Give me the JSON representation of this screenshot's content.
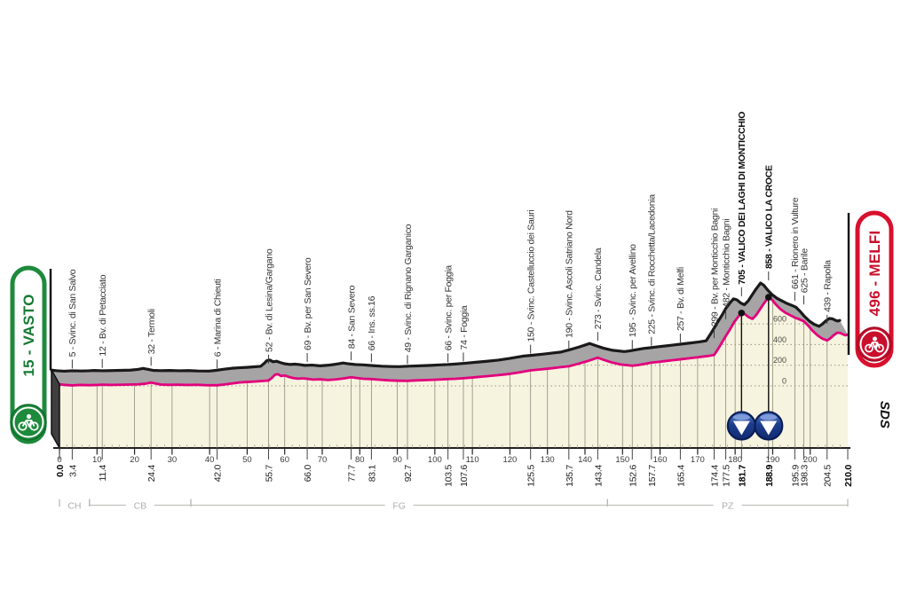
{
  "start_badge": {
    "label": "15 - VASTO",
    "color": "#1e8a3c"
  },
  "finish_badge": {
    "label": "496 - MELFI",
    "color": "#cf1032"
  },
  "logo": {
    "text": "SDS"
  },
  "colors": {
    "profile_line": "#e2007d",
    "profile_top_line": "#1a1a1a",
    "band_fill": "#a6a4a5",
    "ground_fill": "#f6f3df",
    "grid": "#8f8d7e",
    "gpm_marker": "#1c3d8f",
    "province": "#b0aeab"
  },
  "chart_data": {
    "type": "area",
    "x_axis": {
      "unit": "km",
      "range": [
        0,
        210
      ],
      "major_tick_step": 10,
      "minor_tick_step": 2
    },
    "y_axis": {
      "unit": "m",
      "gridlines": [
        0,
        200,
        400,
        600
      ],
      "labels": [
        "0",
        "200",
        "400",
        "600"
      ]
    },
    "waypoints": [
      {
        "km": 0.0,
        "elev": 15,
        "label": "",
        "km_label": "0.0",
        "bold": true,
        "type": "start"
      },
      {
        "km": 3.4,
        "elev": 5,
        "label": "5 - Svinc. di San Salvo",
        "km_label": "3.4",
        "bold": false,
        "type": "waypoint"
      },
      {
        "km": 11.4,
        "elev": 12,
        "label": "12 - Bv. di Petacciato",
        "km_label": "11.4",
        "bold": false,
        "type": "waypoint"
      },
      {
        "km": 24.4,
        "elev": 32,
        "label": "32 - Termoli",
        "km_label": "24.4",
        "bold": false,
        "type": "waypoint"
      },
      {
        "km": 42.0,
        "elev": 6,
        "label": "6 - Marina di Chieuti",
        "km_label": "42.0",
        "bold": false,
        "type": "waypoint"
      },
      {
        "km": 55.7,
        "elev": 52,
        "label": "52 - Bv. di Lesina/Gargano",
        "km_label": "55.7",
        "bold": false,
        "type": "waypoint"
      },
      {
        "km": 66.0,
        "elev": 69,
        "label": "69 - Bv. per San Severo",
        "km_label": "66.0",
        "bold": false,
        "type": "waypoint"
      },
      {
        "km": 77.7,
        "elev": 84,
        "label": "84 - San Severo",
        "km_label": "77.7",
        "bold": false,
        "type": "waypoint"
      },
      {
        "km": 83.1,
        "elev": 66,
        "label": "66 - Ins. ss.16",
        "km_label": "83.1",
        "bold": false,
        "type": "waypoint"
      },
      {
        "km": 92.7,
        "elev": 49,
        "label": "49 - Svinc. di Rignano Garganico",
        "km_label": "92.7",
        "bold": false,
        "type": "waypoint"
      },
      {
        "km": 103.5,
        "elev": 66,
        "label": "66 - Svinc. per Foggia",
        "km_label": "103.5",
        "bold": false,
        "type": "waypoint"
      },
      {
        "km": 107.6,
        "elev": 74,
        "label": "74 - Foggia",
        "km_label": "107.6",
        "bold": false,
        "type": "waypoint"
      },
      {
        "km": 125.5,
        "elev": 150,
        "label": "150 - Svinc. Castelluccio dei Sauri",
        "km_label": "125.5",
        "bold": false,
        "type": "waypoint"
      },
      {
        "km": 135.7,
        "elev": 190,
        "label": "190 - Svinc. Ascoli Satriano Nord",
        "km_label": "135.7",
        "bold": false,
        "type": "waypoint"
      },
      {
        "km": 143.4,
        "elev": 273,
        "label": "273 - Svinc. Candela",
        "km_label": "143.4",
        "bold": false,
        "type": "waypoint"
      },
      {
        "km": 152.6,
        "elev": 195,
        "label": "195 - Svinc. per Avellino",
        "km_label": "152.6",
        "bold": false,
        "type": "waypoint"
      },
      {
        "km": 157.7,
        "elev": 225,
        "label": "225 - Svinc. di Rocchetta/Lacedonia",
        "km_label": "157.7",
        "bold": false,
        "type": "waypoint"
      },
      {
        "km": 165.4,
        "elev": 257,
        "label": "257 - Bv. di Melfi",
        "km_label": "165.4",
        "bold": false,
        "type": "waypoint"
      },
      {
        "km": 174.4,
        "elev": 299,
        "label": "299 - Bv. per Monticchio Bagni",
        "km_label": "174.4",
        "bold": false,
        "type": "waypoint"
      },
      {
        "km": 177.5,
        "elev": 482,
        "label": "482 - Monticchio Bagni",
        "km_label": "177.5",
        "bold": false,
        "type": "waypoint"
      },
      {
        "km": 181.7,
        "elev": 705,
        "label": "705 - VALICO DEI LAGHI DI MONTICCHIO",
        "km_label": "181.7",
        "bold": true,
        "type": "summit"
      },
      {
        "km": 188.9,
        "elev": 858,
        "label": "858 - VALICO LA CROCE",
        "km_label": "188.9",
        "bold": true,
        "type": "summit"
      },
      {
        "km": 195.9,
        "elev": 661,
        "label": "661 - Rionero in Vulture",
        "km_label": "195.9",
        "bold": false,
        "type": "waypoint"
      },
      {
        "km": 198.3,
        "elev": 625,
        "label": "625 - Barile",
        "km_label": "198.3",
        "bold": false,
        "type": "waypoint"
      },
      {
        "km": 204.5,
        "elev": 439,
        "label": "439 - Rapolla",
        "km_label": "204.5",
        "bold": false,
        "type": "waypoint"
      },
      {
        "km": 210.0,
        "elev": 496,
        "label": "",
        "km_label": "210.0",
        "bold": true,
        "type": "finish"
      }
    ],
    "gpm": [
      {
        "km": 181.7,
        "elev": 705
      },
      {
        "km": 188.9,
        "elev": 858
      }
    ],
    "provinces": [
      {
        "code": "CH",
        "from_km": 0,
        "to_km": 8
      },
      {
        "code": "CB",
        "from_km": 8,
        "to_km": 35
      },
      {
        "code": "FG",
        "from_km": 35,
        "to_km": 146
      },
      {
        "code": "PZ",
        "from_km": 146,
        "to_km": 210
      }
    ],
    "profile": [
      [
        0,
        15
      ],
      [
        1.5,
        9
      ],
      [
        3.4,
        5
      ],
      [
        5.5,
        9
      ],
      [
        8,
        7
      ],
      [
        10,
        9
      ],
      [
        11.4,
        12
      ],
      [
        13.5,
        9
      ],
      [
        16,
        11
      ],
      [
        18.5,
        13
      ],
      [
        21,
        15
      ],
      [
        23,
        22
      ],
      [
        24.4,
        32
      ],
      [
        25.5,
        24
      ],
      [
        27,
        13
      ],
      [
        29,
        10
      ],
      [
        31.5,
        12
      ],
      [
        34,
        9
      ],
      [
        36.5,
        11
      ],
      [
        39,
        7
      ],
      [
        42,
        6
      ],
      [
        44,
        14
      ],
      [
        46,
        24
      ],
      [
        48,
        33
      ],
      [
        50,
        38
      ],
      [
        52,
        42
      ],
      [
        54,
        47
      ],
      [
        55.7,
        52
      ],
      [
        56.6,
        78
      ],
      [
        57.4,
        108
      ],
      [
        58.2,
        113
      ],
      [
        59,
        96
      ],
      [
        60,
        101
      ],
      [
        61,
        88
      ],
      [
        62.2,
        76
      ],
      [
        63.5,
        70
      ],
      [
        64.8,
        73
      ],
      [
        66,
        69
      ],
      [
        67.5,
        61
      ],
      [
        69.5,
        64
      ],
      [
        71.5,
        57
      ],
      [
        73.5,
        62
      ],
      [
        75.5,
        71
      ],
      [
        77.7,
        84
      ],
      [
        79.2,
        76
      ],
      [
        81,
        69
      ],
      [
        83.1,
        66
      ],
      [
        85.5,
        59
      ],
      [
        88,
        53
      ],
      [
        90.5,
        50
      ],
      [
        92.7,
        49
      ],
      [
        95,
        53
      ],
      [
        98,
        57
      ],
      [
        101,
        61
      ],
      [
        103.5,
        66
      ],
      [
        105.5,
        69
      ],
      [
        107.6,
        74
      ],
      [
        110,
        81
      ],
      [
        113,
        91
      ],
      [
        116,
        101
      ],
      [
        119,
        112
      ],
      [
        122,
        128
      ],
      [
        125.5,
        150
      ],
      [
        128,
        159
      ],
      [
        131,
        170
      ],
      [
        133.5,
        181
      ],
      [
        135.7,
        190
      ],
      [
        138,
        212
      ],
      [
        140.5,
        238
      ],
      [
        143.4,
        273
      ],
      [
        145,
        252
      ],
      [
        147,
        228
      ],
      [
        149.5,
        207
      ],
      [
        152.6,
        195
      ],
      [
        154,
        201
      ],
      [
        156,
        214
      ],
      [
        157.7,
        225
      ],
      [
        159.5,
        232
      ],
      [
        161.5,
        241
      ],
      [
        163.5,
        249
      ],
      [
        165.4,
        257
      ],
      [
        167.5,
        266
      ],
      [
        170,
        277
      ],
      [
        172.5,
        288
      ],
      [
        174.4,
        299
      ],
      [
        175.5,
        360
      ],
      [
        176.5,
        420
      ],
      [
        177.5,
        482
      ],
      [
        178.6,
        545
      ],
      [
        179.7,
        615
      ],
      [
        180.8,
        668
      ],
      [
        181.7,
        705
      ],
      [
        182.6,
        695
      ],
      [
        183.6,
        665
      ],
      [
        184.6,
        648
      ],
      [
        185.6,
        685
      ],
      [
        186.6,
        740
      ],
      [
        187.7,
        800
      ],
      [
        188.9,
        858
      ],
      [
        189.8,
        835
      ],
      [
        190.8,
        790
      ],
      [
        192,
        745
      ],
      [
        193.3,
        710
      ],
      [
        194.6,
        685
      ],
      [
        195.9,
        661
      ],
      [
        197,
        645
      ],
      [
        198.3,
        625
      ],
      [
        199.4,
        585
      ],
      [
        200.6,
        535
      ],
      [
        202,
        487
      ],
      [
        203.2,
        458
      ],
      [
        204.5,
        439
      ],
      [
        205.4,
        462
      ],
      [
        206.3,
        492
      ],
      [
        207.2,
        515
      ],
      [
        208,
        512
      ],
      [
        208.8,
        498
      ],
      [
        209.4,
        490
      ],
      [
        210,
        496
      ]
    ]
  }
}
